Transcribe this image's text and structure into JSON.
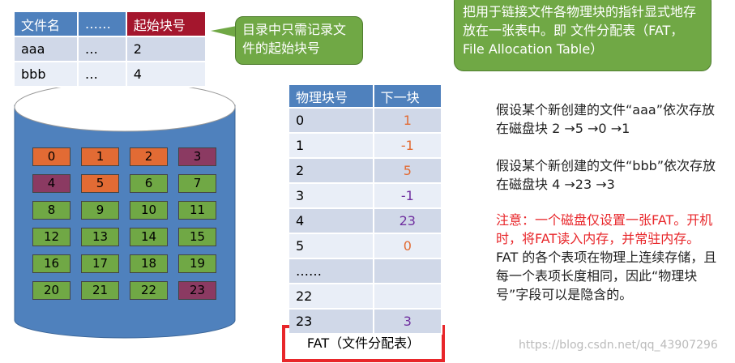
{
  "directory": {
    "headers": [
      "文件名",
      "……",
      "起始块号"
    ],
    "rows": [
      [
        "aaa",
        "…",
        "2"
      ],
      [
        "bbb",
        "…",
        "4"
      ]
    ]
  },
  "callout": "目录中只需记录文件的起始块号",
  "top_note": "把用于链接文件各物理块的指针显式地存放在一张表中。即 文件分配表（FAT，File Allocation Table）",
  "disk": {
    "blocks": [
      "0",
      "1",
      "2",
      "3",
      "4",
      "5",
      "6",
      "7",
      "8",
      "9",
      "10",
      "11",
      "12",
      "13",
      "14",
      "15",
      "16",
      "17",
      "18",
      "19",
      "20",
      "21",
      "22",
      "23"
    ]
  },
  "fat": {
    "headers": [
      "物理块号",
      "下一块"
    ],
    "rows": [
      [
        "0",
        "1"
      ],
      [
        "1",
        "-1"
      ],
      [
        "2",
        "5"
      ],
      [
        "3",
        "-1"
      ],
      [
        "4",
        "23"
      ],
      [
        "5",
        "0"
      ],
      [
        "……",
        ""
      ],
      [
        "22",
        ""
      ],
      [
        "23",
        "3"
      ]
    ]
  },
  "fat_caption": "FAT（文件分配表）",
  "notes": {
    "aaa": "假设某个新创建的文件“aaa”依次存放在磁盘块 2 →5 →0 →1",
    "bbb": "假设某个新创建的文件“bbb”依次存放在磁盘块 4 →23 →3",
    "warning": "注意：一个磁盘仅设置一张FAT。开机时，将FAT读入内存，并常驻内存。",
    "detail": " FAT 的各个表项在物理上连续存储，且每一个表项长度相同，因此“物理块号”字段可以是隐含的。"
  },
  "watermark": "https://blog.csdn.net/qq_43907296"
}
